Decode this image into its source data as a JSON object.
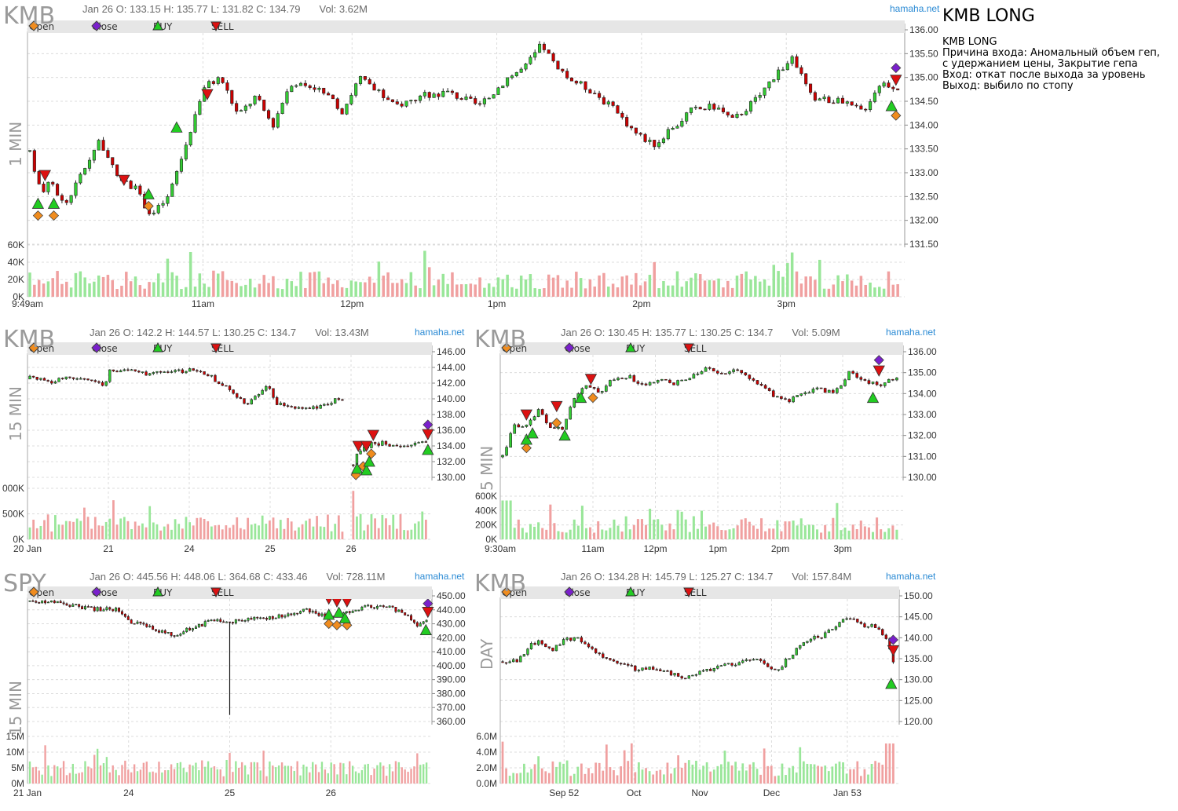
{
  "note": {
    "title": "KMB LONG",
    "lines": [
      "KMB LONG",
      "Причина входа: Аномальный объем геп,",
      "с удержанием цены, Закрытие гепа",
      "",
      "Вход: откат после выхода за уровень",
      "Выход: выбило по стопу"
    ]
  },
  "legend": {
    "open": "Open",
    "close": "Close",
    "buy": "BUY",
    "sell": "SELL"
  },
  "colors": {
    "up": "#33cc33",
    "down": "#cc0000",
    "vol_up": "#99e699",
    "vol_down": "#f0a0a0",
    "open_marker": "#f08c1e",
    "close_marker": "#7a20cc",
    "buy_marker": "#22cc22",
    "sell_marker": "#dd1111",
    "grid": "#dcdcdc",
    "source_link": "#2a8ad4"
  },
  "chart_data": [
    {
      "id": "p1",
      "type": "candlestick",
      "symbol": "KMB",
      "timeframe": "1 MIN",
      "header": "Jan 26 O: 133.15 H: 135.77 L: 131.82 C: 134.79",
      "volume_text": "Vol: 3.62M",
      "source": "hamaha.net",
      "y_ticks": [
        "136.00",
        "135.50",
        "135.00",
        "134.50",
        "134.00",
        "133.50",
        "133.00",
        "132.50",
        "132.00",
        "131.50"
      ],
      "ylim": [
        131.5,
        136.0
      ],
      "vol_ticks": [
        "60K",
        "40K",
        "20K",
        "0K"
      ],
      "vol_max": 60000,
      "x_labels": [
        {
          "label": "9:49am",
          "at": 0.0
        },
        {
          "label": "11am",
          "at": 0.2
        },
        {
          "label": "12pm",
          "at": 0.37
        },
        {
          "label": "1pm",
          "at": 0.535
        },
        {
          "label": "2pm",
          "at": 0.7
        },
        {
          "label": "3pm",
          "at": 0.865
        }
      ],
      "price_path": [
        [
          0,
          133.4
        ],
        [
          0.012,
          132.6
        ],
        [
          0.025,
          132.8
        ],
        [
          0.04,
          132.3
        ],
        [
          0.06,
          133.0
        ],
        [
          0.08,
          133.7
        ],
        [
          0.1,
          132.9
        ],
        [
          0.12,
          132.7
        ],
        [
          0.14,
          132.1
        ],
        [
          0.16,
          132.5
        ],
        [
          0.18,
          133.6
        ],
        [
          0.2,
          134.8
        ],
        [
          0.22,
          135.0
        ],
        [
          0.24,
          134.2
        ],
        [
          0.26,
          134.6
        ],
        [
          0.28,
          134.0
        ],
        [
          0.3,
          134.9
        ],
        [
          0.33,
          134.8
        ],
        [
          0.36,
          134.3
        ],
        [
          0.38,
          135.0
        ],
        [
          0.42,
          134.4
        ],
        [
          0.45,
          134.6
        ],
        [
          0.48,
          134.7
        ],
        [
          0.52,
          134.4
        ],
        [
          0.55,
          135.0
        ],
        [
          0.57,
          135.2
        ],
        [
          0.59,
          135.7
        ],
        [
          0.61,
          135.1
        ],
        [
          0.65,
          134.7
        ],
        [
          0.68,
          134.2
        ],
        [
          0.7,
          133.8
        ],
        [
          0.72,
          133.6
        ],
        [
          0.74,
          133.9
        ],
        [
          0.76,
          134.3
        ],
        [
          0.79,
          134.4
        ],
        [
          0.81,
          134.1
        ],
        [
          0.84,
          134.6
        ],
        [
          0.86,
          135.1
        ],
        [
          0.88,
          135.4
        ],
        [
          0.9,
          134.6
        ],
        [
          0.93,
          134.5
        ],
        [
          0.96,
          134.3
        ],
        [
          0.98,
          134.9
        ],
        [
          1.0,
          134.8
        ]
      ],
      "markers": [
        {
          "type": "open",
          "x": 0.012,
          "y": 132.1
        },
        {
          "type": "buy",
          "x": 0.012,
          "y": 132.35
        },
        {
          "type": "sell",
          "x": 0.02,
          "y": 132.95
        },
        {
          "type": "open",
          "x": 0.03,
          "y": 132.1
        },
        {
          "type": "buy",
          "x": 0.03,
          "y": 132.35
        },
        {
          "type": "sell",
          "x": 0.11,
          "y": 132.85
        },
        {
          "type": "open",
          "x": 0.138,
          "y": 132.3
        },
        {
          "type": "buy",
          "x": 0.138,
          "y": 132.55
        },
        {
          "type": "buy",
          "x": 0.17,
          "y": 133.95
        },
        {
          "type": "sell",
          "x": 0.205,
          "y": 134.65
        },
        {
          "type": "close",
          "x": 0.99,
          "y": 135.2
        },
        {
          "type": "sell",
          "x": 0.99,
          "y": 134.95
        },
        {
          "type": "buy",
          "x": 0.985,
          "y": 134.4
        },
        {
          "type": "open",
          "x": 0.99,
          "y": 134.2
        }
      ]
    },
    {
      "id": "p2",
      "type": "candlestick",
      "symbol": "KMB",
      "timeframe": "15 MIN",
      "header": "Jan 26 O: 142.2 H: 144.57 L: 130.25 C: 134.7",
      "volume_text": "Vol: 13.43M",
      "source": "hamaha.net",
      "y_ticks": [
        "146.00",
        "144.00",
        "142.00",
        "140.00",
        "138.00",
        "136.00",
        "134.00",
        "132.00",
        "130.00"
      ],
      "ylim": [
        130,
        146
      ],
      "vol_ticks": [
        "000K",
        "500K",
        "0K"
      ],
      "vol_max": 1000000,
      "x_labels": [
        {
          "label": "20 Jan",
          "at": 0.0
        },
        {
          "label": "21",
          "at": 0.2
        },
        {
          "label": "24",
          "at": 0.4
        },
        {
          "label": "25",
          "at": 0.6
        },
        {
          "label": "26",
          "at": 0.8
        }
      ],
      "price_path": [
        [
          0,
          142.7
        ],
        [
          0.05,
          142.2
        ],
        [
          0.1,
          142.7
        ],
        [
          0.15,
          142.4
        ],
        [
          0.19,
          141.7
        ],
        [
          0.2,
          143.8
        ],
        [
          0.26,
          143.5
        ],
        [
          0.3,
          143.1
        ],
        [
          0.38,
          143.5
        ],
        [
          0.42,
          143.8
        ],
        [
          0.46,
          142.7
        ],
        [
          0.5,
          141.3
        ],
        [
          0.52,
          140.2
        ],
        [
          0.55,
          139.3
        ],
        [
          0.58,
          140.6
        ],
        [
          0.6,
          141.6
        ],
        [
          0.62,
          139.6
        ],
        [
          0.66,
          138.8
        ],
        [
          0.7,
          138.7
        ],
        [
          0.74,
          139.0
        ],
        [
          0.77,
          140.0
        ],
        [
          0.79,
          139.6
        ],
        null,
        [
          0.81,
          131.0
        ],
        [
          0.83,
          133.2
        ],
        [
          0.86,
          134.2
        ],
        [
          0.9,
          134.4
        ],
        [
          0.94,
          133.6
        ],
        [
          0.97,
          134.6
        ],
        [
          1.0,
          134.7
        ]
      ],
      "markers": [
        {
          "type": "open",
          "x": 0.812,
          "y": 130.3
        },
        {
          "type": "buy",
          "x": 0.815,
          "y": 131.1
        },
        {
          "type": "sell",
          "x": 0.818,
          "y": 134.0
        },
        {
          "type": "open",
          "x": 0.83,
          "y": 131.4
        },
        {
          "type": "buy",
          "x": 0.838,
          "y": 130.9
        },
        {
          "type": "sell",
          "x": 0.838,
          "y": 134.0
        },
        {
          "type": "open",
          "x": 0.85,
          "y": 133.0
        },
        {
          "type": "buy",
          "x": 0.845,
          "y": 132.0
        },
        {
          "type": "sell",
          "x": 0.855,
          "y": 135.4
        },
        {
          "type": "close",
          "x": 0.99,
          "y": 136.7
        },
        {
          "type": "sell",
          "x": 0.99,
          "y": 135.5
        },
        {
          "type": "buy",
          "x": 0.99,
          "y": 133.5
        }
      ]
    },
    {
      "id": "p3",
      "type": "candlestick",
      "symbol": "KMB",
      "timeframe": "5 MIN",
      "header": "Jan 26 O: 130.45 H: 135.77 L: 130.25 C: 134.7",
      "volume_text": "Vol: 5.09M",
      "source": "hamaha.net",
      "y_ticks": [
        "136.00",
        "135.00",
        "134.00",
        "133.00",
        "132.00",
        "131.00",
        "130.00"
      ],
      "ylim": [
        130,
        136
      ],
      "vol_ticks": [
        "600K",
        "400K",
        "200K",
        "0K"
      ],
      "vol_max": 600000,
      "x_labels": [
        {
          "label": "9:30am",
          "at": 0.0
        },
        {
          "label": "11am",
          "at": 0.23
        },
        {
          "label": "12pm",
          "at": 0.385
        },
        {
          "label": "1pm",
          "at": 0.54
        },
        {
          "label": "2pm",
          "at": 0.695
        },
        {
          "label": "3pm",
          "at": 0.85
        }
      ],
      "price_path": [
        [
          0,
          131.0
        ],
        [
          0.03,
          132.5
        ],
        [
          0.06,
          132.4
        ],
        [
          0.09,
          133.2
        ],
        [
          0.12,
          132.4
        ],
        [
          0.15,
          132.3
        ],
        [
          0.18,
          133.8
        ],
        [
          0.21,
          134.4
        ],
        [
          0.25,
          134.0
        ],
        [
          0.28,
          134.7
        ],
        [
          0.32,
          134.8
        ],
        [
          0.36,
          134.4
        ],
        [
          0.4,
          134.6
        ],
        [
          0.44,
          134.5
        ],
        [
          0.48,
          134.8
        ],
        [
          0.52,
          135.2
        ],
        [
          0.56,
          135.0
        ],
        [
          0.6,
          135.1
        ],
        [
          0.64,
          134.5
        ],
        [
          0.68,
          134.0
        ],
        [
          0.72,
          133.6
        ],
        [
          0.76,
          134.0
        ],
        [
          0.8,
          134.2
        ],
        [
          0.84,
          134.0
        ],
        [
          0.88,
          135.0
        ],
        [
          0.92,
          134.6
        ],
        [
          0.95,
          134.4
        ],
        [
          1.0,
          134.8
        ]
      ],
      "markers": [
        {
          "type": "open",
          "x": 0.065,
          "y": 131.4
        },
        {
          "type": "buy",
          "x": 0.065,
          "y": 131.8
        },
        {
          "type": "sell",
          "x": 0.065,
          "y": 133.0
        },
        {
          "type": "buy",
          "x": 0.08,
          "y": 132.1
        },
        {
          "type": "sell",
          "x": 0.14,
          "y": 133.4
        },
        {
          "type": "open",
          "x": 0.14,
          "y": 132.6
        },
        {
          "type": "buy",
          "x": 0.16,
          "y": 132.0
        },
        {
          "type": "buy",
          "x": 0.2,
          "y": 133.8
        },
        {
          "type": "sell",
          "x": 0.225,
          "y": 134.7
        },
        {
          "type": "open",
          "x": 0.23,
          "y": 133.8
        },
        {
          "type": "close",
          "x": 0.94,
          "y": 135.6
        },
        {
          "type": "sell",
          "x": 0.94,
          "y": 135.1
        },
        {
          "type": "buy",
          "x": 0.925,
          "y": 133.8
        }
      ]
    },
    {
      "id": "p4",
      "type": "candlestick",
      "symbol": "SPY",
      "timeframe": "15 MIN",
      "header": "Jan 26 O: 445.56 H: 448.06 L: 364.68 C: 433.46",
      "volume_text": "Vol: 728.11M",
      "source": "hamaha.net",
      "y_ticks": [
        "450.00",
        "440.00",
        "430.00",
        "420.00",
        "410.00",
        "400.00",
        "390.00",
        "380.00",
        "370.00",
        "360.00"
      ],
      "ylim": [
        360,
        450
      ],
      "vol_ticks": [
        "15M",
        "10M",
        "5M",
        "0M"
      ],
      "vol_max": 15000000,
      "x_labels": [
        {
          "label": "21 Jan",
          "at": 0.0
        },
        {
          "label": "24",
          "at": 0.25
        },
        {
          "label": "25",
          "at": 0.5
        },
        {
          "label": "26",
          "at": 0.75
        }
      ],
      "price_path": [
        [
          0,
          446.0
        ],
        [
          0.08,
          444.5
        ],
        [
          0.15,
          441.0
        ],
        [
          0.22,
          440.0
        ],
        [
          0.25,
          432.0
        ],
        [
          0.3,
          428.0
        ],
        [
          0.36,
          422.0
        ],
        [
          0.42,
          428.0
        ],
        [
          0.47,
          434.0
        ],
        [
          0.5,
          431.0
        ],
        [
          0.55,
          433.0
        ],
        [
          0.6,
          434.0
        ],
        [
          0.65,
          437.0
        ],
        [
          0.7,
          440.0
        ],
        [
          0.75,
          434.0
        ],
        [
          0.8,
          438.0
        ],
        [
          0.84,
          442.0
        ],
        [
          0.9,
          442.5
        ],
        [
          0.95,
          437.0
        ],
        [
          0.98,
          428.0
        ],
        [
          1.0,
          434.0
        ]
      ],
      "spike": {
        "x": 0.5,
        "low": 364.68
      },
      "markers": [
        {
          "type": "open",
          "x": 0.745,
          "y": 430.0
        },
        {
          "type": "buy",
          "x": 0.745,
          "y": 436.5
        },
        {
          "type": "sell",
          "x": 0.745,
          "y": 448.0
        },
        {
          "type": "open",
          "x": 0.765,
          "y": 429.0
        },
        {
          "type": "buy",
          "x": 0.77,
          "y": 438.0
        },
        {
          "type": "sell",
          "x": 0.765,
          "y": 446.0
        },
        {
          "type": "open",
          "x": 0.79,
          "y": 429.0
        },
        {
          "type": "buy",
          "x": 0.785,
          "y": 434.0
        },
        {
          "type": "sell",
          "x": 0.79,
          "y": 446.0
        },
        {
          "type": "close",
          "x": 0.99,
          "y": 444.5
        },
        {
          "type": "sell",
          "x": 0.99,
          "y": 438.5
        },
        {
          "type": "buy",
          "x": 0.985,
          "y": 425.5
        }
      ]
    },
    {
      "id": "p5",
      "type": "candlestick",
      "symbol": "KMB",
      "timeframe": "DAY",
      "header": "Jan 26 O: 134.28 H: 145.79 L: 125.27 C: 134.7",
      "volume_text": "Vol: 157.84M",
      "source": "hamaha.net",
      "y_ticks": [
        "150.00",
        "145.00",
        "140.00",
        "135.00",
        "130.00",
        "125.00",
        "120.00"
      ],
      "ylim": [
        120,
        150
      ],
      "vol_ticks": [
        "6.0M",
        "4.0M",
        "2.0M",
        "0.0M"
      ],
      "vol_max": 6000000,
      "x_labels": [
        {
          "label": "Sep 52",
          "at": 0.16
        },
        {
          "label": "Oct",
          "at": 0.335
        },
        {
          "label": "Nov",
          "at": 0.5
        },
        {
          "label": "Dec",
          "at": 0.68
        },
        {
          "label": "Jan 53",
          "at": 0.87
        }
      ],
      "price_path": [
        [
          0,
          134.0
        ],
        [
          0.04,
          134.5
        ],
        [
          0.07,
          138.5
        ],
        [
          0.1,
          139.0
        ],
        [
          0.13,
          137.0
        ],
        [
          0.16,
          140.0
        ],
        [
          0.2,
          139.5
        ],
        [
          0.25,
          136.0
        ],
        [
          0.3,
          134.0
        ],
        [
          0.34,
          132.5
        ],
        [
          0.38,
          133.0
        ],
        [
          0.42,
          132.0
        ],
        [
          0.46,
          130.5
        ],
        [
          0.5,
          131.5
        ],
        [
          0.54,
          132.5
        ],
        [
          0.58,
          133.5
        ],
        [
          0.62,
          134.5
        ],
        [
          0.66,
          135.0
        ],
        [
          0.7,
          132.0
        ],
        [
          0.74,
          136.0
        ],
        [
          0.78,
          139.5
        ],
        [
          0.82,
          140.5
        ],
        [
          0.86,
          143.0
        ],
        [
          0.88,
          145.0
        ],
        [
          0.92,
          143.0
        ],
        [
          0.95,
          143.0
        ],
        [
          0.98,
          140.0
        ],
        [
          1.0,
          134.7
        ]
      ],
      "markers": [
        {
          "type": "close",
          "x": 0.985,
          "y": 139.5
        },
        {
          "type": "sell",
          "x": 0.985,
          "y": 137.0
        },
        {
          "type": "buy",
          "x": 0.98,
          "y": 129.0
        }
      ]
    }
  ]
}
